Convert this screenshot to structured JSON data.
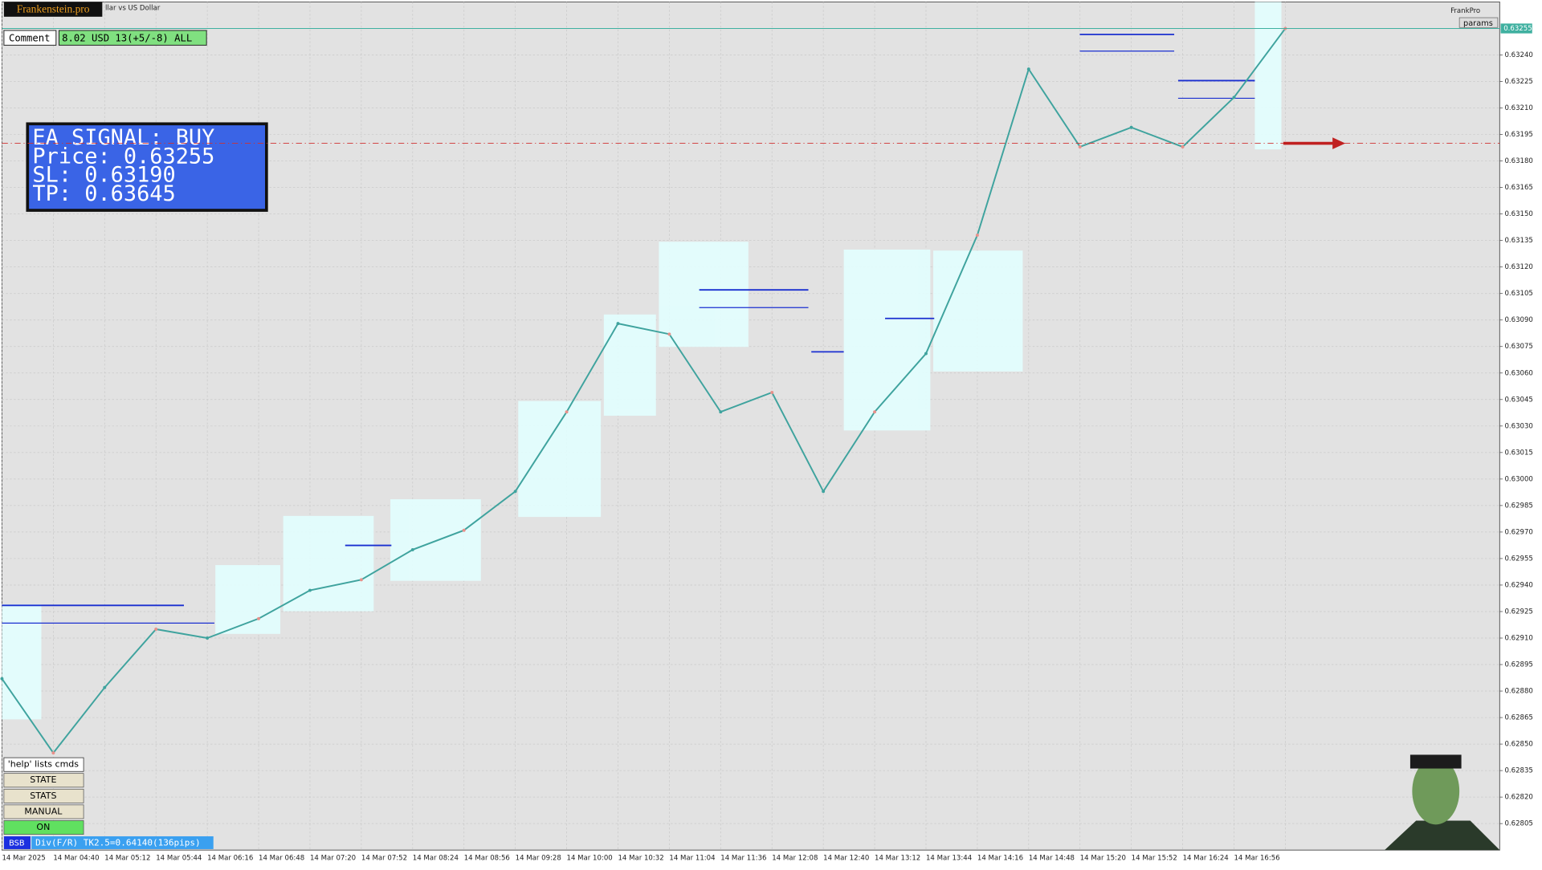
{
  "window": {
    "brand": "Frankenstein.pro",
    "symbol": "llar vs US Dollar",
    "expert": "FrankPro",
    "params_button": "params"
  },
  "comment": {
    "label": "Comment",
    "text": "8.02 USD 13(+5/-8) ALL"
  },
  "signal": {
    "line1": "EA SIGNAL: BUY",
    "line2": "Price: 0.63255",
    "line3": "SL:    0.63190",
    "line4": "TP:    0.63645"
  },
  "buttons": {
    "help": "'help' lists cmds",
    "state": "STATE",
    "stats": "STATS",
    "manual": "MANUAL",
    "on": "ON"
  },
  "status": {
    "tag": "BSB",
    "text": "Div(F/R) TK2.5=0.64140(136pips)"
  },
  "chart_data": {
    "type": "line",
    "categories": [
      "14 Mar 2025",
      "14 Mar 04:40",
      "14 Mar 05:12",
      "14 Mar 05:44",
      "14 Mar 06:16",
      "14 Mar 06:48",
      "14 Mar 07:20",
      "14 Mar 07:52",
      "14 Mar 08:24",
      "14 Mar 08:56",
      "14 Mar 09:28",
      "14 Mar 10:00",
      "14 Mar 10:32",
      "14 Mar 11:04",
      "14 Mar 11:36",
      "14 Mar 12:08",
      "14 Mar 12:40",
      "14 Mar 13:12",
      "14 Mar 13:44",
      "14 Mar 14:16",
      "14 Mar 14:48",
      "14 Mar 15:20",
      "14 Mar 15:52",
      "14 Mar 16:24",
      "14 Mar 16:56",
      null
    ],
    "values": [
      0.62887,
      0.62845,
      0.62882,
      0.62915,
      0.6291,
      0.62921,
      0.62937,
      0.62943,
      0.6296,
      0.62971,
      0.62993,
      0.63038,
      0.63088,
      0.63082,
      0.63038,
      0.63049,
      0.62993,
      0.63038,
      0.63071,
      0.63138,
      0.63232,
      0.63188,
      0.63199,
      0.63188,
      0.63216,
      0.63255
    ],
    "color": "#3fa39e",
    "ylim": [
      0.6279,
      0.6327
    ],
    "yticks": [
      {
        "value": 0.6324,
        "label": "0.63240"
      },
      0.63225,
      {
        "value": 0.6321,
        "label": "0.63210"
      },
      0.63195,
      {
        "value": 0.6318,
        "label": "0.63180"
      },
      0.63165,
      {
        "value": 0.6315,
        "label": "0.63150"
      },
      0.63135,
      {
        "value": 0.6312,
        "label": "0.63120"
      },
      0.63105,
      {
        "value": 0.6309,
        "label": "0.63090"
      },
      0.63075,
      {
        "value": 0.6306,
        "label": "0.63060"
      },
      0.63045,
      {
        "value": 0.6303,
        "label": "0.63030"
      },
      0.63015,
      {
        "value": 0.63,
        "label": "0.63000"
      },
      0.62985,
      {
        "value": 0.6297,
        "label": "0.62970"
      },
      0.62955,
      {
        "value": 0.6294,
        "label": "0.62940"
      },
      0.62925,
      {
        "value": 0.6291,
        "label": "0.62910"
      },
      0.62895,
      {
        "value": 0.6288,
        "label": "0.62880"
      },
      0.62865,
      {
        "value": 0.6285,
        "label": "0.62850"
      },
      0.62835,
      {
        "value": 0.6282,
        "label": "0.62820"
      },
      0.62805
    ],
    "grid": true,
    "price_marker": {
      "value": 0.63255,
      "label": "0.63255"
    },
    "stop_line": 0.6319
  }
}
